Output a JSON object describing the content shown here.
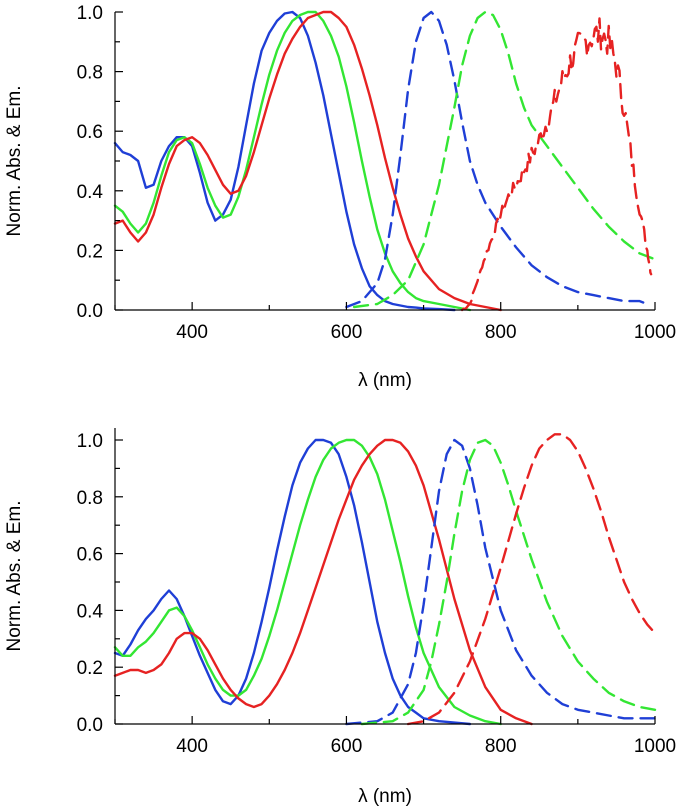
{
  "chart_data": [
    {
      "type": "line",
      "title": "",
      "xlabel": "λ (nm)",
      "ylabel": "Norm. Abs. & Em.",
      "xlim": [
        300,
        1000
      ],
      "ylim": [
        0,
        1.0
      ],
      "xticks": [
        400,
        600,
        800,
        1000
      ],
      "yticks": [
        0.0,
        0.2,
        0.4,
        0.6,
        0.8,
        1.0
      ],
      "xtick_labels": [
        "400",
        "600",
        "800",
        "1000"
      ],
      "ytick_labels": [
        "0.0",
        "0.2",
        "0.4",
        "0.6",
        "0.8",
        "1.0"
      ],
      "series": [
        {
          "name": "blue absorption",
          "color": "#1f3fd6",
          "style": "solid",
          "x": [
            300,
            310,
            320,
            330,
            340,
            350,
            360,
            370,
            380,
            390,
            400,
            410,
            420,
            430,
            440,
            450,
            460,
            470,
            480,
            490,
            500,
            510,
            520,
            530,
            540,
            550,
            560,
            570,
            580,
            590,
            600,
            610,
            620,
            630,
            640,
            650,
            660,
            670,
            680,
            690,
            700,
            720,
            740
          ],
          "y": [
            0.56,
            0.53,
            0.52,
            0.5,
            0.41,
            0.42,
            0.5,
            0.55,
            0.58,
            0.58,
            0.55,
            0.46,
            0.36,
            0.3,
            0.32,
            0.37,
            0.48,
            0.62,
            0.76,
            0.87,
            0.93,
            0.97,
            0.995,
            1.0,
            0.98,
            0.92,
            0.83,
            0.72,
            0.59,
            0.46,
            0.33,
            0.22,
            0.14,
            0.08,
            0.05,
            0.03,
            0.02,
            0.015,
            0.01,
            0.008,
            0.005,
            0.003,
            0.0
          ]
        },
        {
          "name": "green absorption",
          "color": "#33e633",
          "style": "solid",
          "x": [
            300,
            310,
            320,
            330,
            340,
            350,
            360,
            370,
            380,
            390,
            400,
            410,
            420,
            430,
            440,
            450,
            460,
            470,
            480,
            490,
            500,
            510,
            520,
            530,
            540,
            550,
            560,
            570,
            580,
            590,
            600,
            610,
            620,
            630,
            640,
            650,
            660,
            670,
            680,
            690,
            700,
            720,
            740,
            760
          ],
          "y": [
            0.35,
            0.33,
            0.29,
            0.26,
            0.29,
            0.36,
            0.45,
            0.53,
            0.57,
            0.58,
            0.56,
            0.49,
            0.41,
            0.35,
            0.31,
            0.32,
            0.38,
            0.47,
            0.58,
            0.69,
            0.79,
            0.87,
            0.93,
            0.97,
            0.99,
            1.0,
            1.0,
            0.97,
            0.92,
            0.85,
            0.75,
            0.63,
            0.5,
            0.38,
            0.27,
            0.19,
            0.13,
            0.09,
            0.06,
            0.04,
            0.03,
            0.02,
            0.01,
            0.0
          ]
        },
        {
          "name": "red absorption",
          "color": "#e62222",
          "style": "solid",
          "x": [
            300,
            310,
            320,
            330,
            340,
            350,
            360,
            370,
            380,
            390,
            400,
            410,
            420,
            430,
            440,
            450,
            460,
            470,
            480,
            490,
            500,
            510,
            520,
            530,
            540,
            550,
            560,
            570,
            580,
            590,
            600,
            610,
            620,
            630,
            640,
            650,
            660,
            670,
            680,
            690,
            700,
            720,
            740,
            760,
            780,
            800
          ],
          "y": [
            0.29,
            0.3,
            0.26,
            0.23,
            0.26,
            0.32,
            0.41,
            0.49,
            0.55,
            0.57,
            0.58,
            0.56,
            0.52,
            0.47,
            0.42,
            0.39,
            0.4,
            0.45,
            0.53,
            0.62,
            0.71,
            0.79,
            0.86,
            0.91,
            0.95,
            0.98,
            0.99,
            1.0,
            1.0,
            0.98,
            0.95,
            0.89,
            0.81,
            0.72,
            0.62,
            0.51,
            0.41,
            0.32,
            0.24,
            0.18,
            0.13,
            0.07,
            0.04,
            0.02,
            0.01,
            0.0
          ]
        },
        {
          "name": "blue emission",
          "color": "#1f3fd6",
          "style": "dashed",
          "x": [
            600,
            620,
            640,
            650,
            660,
            670,
            680,
            690,
            700,
            710,
            720,
            730,
            740,
            750,
            760,
            770,
            780,
            800,
            820,
            840,
            860,
            880,
            900,
            920,
            940,
            960,
            980,
            990
          ],
          "y": [
            0.01,
            0.03,
            0.09,
            0.17,
            0.32,
            0.52,
            0.74,
            0.9,
            0.98,
            1.0,
            0.97,
            0.89,
            0.77,
            0.63,
            0.5,
            0.42,
            0.36,
            0.28,
            0.21,
            0.15,
            0.11,
            0.08,
            0.06,
            0.05,
            0.04,
            0.03,
            0.03,
            0.02
          ]
        },
        {
          "name": "green emission",
          "color": "#33e633",
          "style": "dashed",
          "x": [
            610,
            640,
            660,
            680,
            700,
            720,
            740,
            750,
            760,
            770,
            780,
            790,
            800,
            810,
            820,
            830,
            840,
            860,
            880,
            900,
            920,
            940,
            960,
            980,
            1000
          ],
          "y": [
            0.01,
            0.02,
            0.05,
            0.1,
            0.22,
            0.42,
            0.68,
            0.82,
            0.92,
            0.98,
            1.0,
            0.99,
            0.94,
            0.86,
            0.76,
            0.68,
            0.62,
            0.55,
            0.48,
            0.41,
            0.34,
            0.28,
            0.23,
            0.19,
            0.17
          ]
        },
        {
          "name": "red emission",
          "color": "#e62222",
          "style": "noisy-dashed",
          "x": [
            750,
            760,
            770,
            780,
            790,
            800,
            810,
            820,
            830,
            840,
            850,
            860,
            870,
            880,
            890,
            900,
            910,
            920,
            930,
            940,
            950,
            960,
            970,
            980,
            990,
            995
          ],
          "y": [
            0.0,
            0.02,
            0.1,
            0.18,
            0.25,
            0.32,
            0.38,
            0.42,
            0.47,
            0.52,
            0.57,
            0.63,
            0.7,
            0.77,
            0.83,
            0.88,
            0.9,
            0.92,
            0.93,
            0.9,
            0.82,
            0.68,
            0.5,
            0.34,
            0.2,
            0.12
          ]
        }
      ]
    },
    {
      "type": "line",
      "title": "",
      "xlabel": "λ (nm)",
      "ylabel": "Norm. Abs. & Em.",
      "xlim": [
        300,
        1000
      ],
      "ylim": [
        0,
        1.0
      ],
      "xticks": [
        400,
        600,
        800,
        1000
      ],
      "yticks": [
        0.0,
        0.2,
        0.4,
        0.6,
        0.8,
        1.0
      ],
      "xtick_labels": [
        "400",
        "600",
        "800",
        "1000"
      ],
      "ytick_labels": [
        "0.0",
        "0.2",
        "0.4",
        "0.6",
        "0.8",
        "1.0"
      ],
      "series": [
        {
          "name": "blue absorption",
          "color": "#1f3fd6",
          "style": "solid",
          "x": [
            300,
            310,
            320,
            330,
            340,
            350,
            360,
            370,
            380,
            390,
            400,
            410,
            420,
            430,
            440,
            450,
            460,
            470,
            480,
            490,
            500,
            510,
            520,
            530,
            540,
            550,
            560,
            570,
            580,
            590,
            600,
            610,
            620,
            630,
            640,
            650,
            660,
            670,
            680,
            690,
            700,
            720,
            740,
            760
          ],
          "y": [
            0.25,
            0.24,
            0.28,
            0.33,
            0.37,
            0.4,
            0.44,
            0.47,
            0.44,
            0.38,
            0.31,
            0.24,
            0.18,
            0.12,
            0.08,
            0.07,
            0.1,
            0.16,
            0.25,
            0.36,
            0.48,
            0.61,
            0.73,
            0.84,
            0.92,
            0.97,
            1.0,
            1.0,
            0.99,
            0.95,
            0.87,
            0.77,
            0.64,
            0.5,
            0.36,
            0.25,
            0.16,
            0.1,
            0.06,
            0.04,
            0.02,
            0.01,
            0.005,
            0.0
          ]
        },
        {
          "name": "green absorption",
          "color": "#33e633",
          "style": "solid",
          "x": [
            300,
            310,
            320,
            330,
            340,
            350,
            360,
            370,
            380,
            390,
            400,
            410,
            420,
            430,
            440,
            450,
            460,
            470,
            480,
            490,
            500,
            510,
            520,
            530,
            540,
            550,
            560,
            570,
            580,
            590,
            600,
            610,
            620,
            630,
            640,
            650,
            660,
            670,
            680,
            690,
            700,
            720,
            740,
            760,
            780,
            800
          ],
          "y": [
            0.27,
            0.24,
            0.24,
            0.27,
            0.29,
            0.32,
            0.36,
            0.4,
            0.41,
            0.38,
            0.33,
            0.27,
            0.21,
            0.16,
            0.12,
            0.1,
            0.1,
            0.12,
            0.17,
            0.23,
            0.31,
            0.4,
            0.5,
            0.6,
            0.7,
            0.79,
            0.87,
            0.93,
            0.97,
            0.99,
            1.0,
            1.0,
            0.98,
            0.94,
            0.88,
            0.79,
            0.68,
            0.57,
            0.45,
            0.34,
            0.25,
            0.13,
            0.06,
            0.03,
            0.01,
            0.0
          ]
        },
        {
          "name": "red absorption",
          "color": "#e62222",
          "style": "solid",
          "x": [
            300,
            310,
            320,
            330,
            340,
            350,
            360,
            370,
            380,
            390,
            400,
            410,
            420,
            430,
            440,
            450,
            460,
            470,
            480,
            490,
            500,
            510,
            520,
            530,
            540,
            550,
            560,
            570,
            580,
            590,
            600,
            610,
            620,
            630,
            640,
            650,
            660,
            670,
            680,
            690,
            700,
            720,
            740,
            760,
            780,
            800,
            820,
            840
          ],
          "y": [
            0.17,
            0.18,
            0.19,
            0.19,
            0.18,
            0.19,
            0.21,
            0.25,
            0.3,
            0.32,
            0.32,
            0.3,
            0.26,
            0.21,
            0.16,
            0.12,
            0.09,
            0.07,
            0.06,
            0.07,
            0.1,
            0.14,
            0.19,
            0.25,
            0.32,
            0.4,
            0.48,
            0.56,
            0.64,
            0.72,
            0.79,
            0.86,
            0.91,
            0.95,
            0.98,
            1.0,
            1.0,
            0.99,
            0.96,
            0.91,
            0.84,
            0.65,
            0.44,
            0.26,
            0.13,
            0.05,
            0.02,
            0.0
          ]
        },
        {
          "name": "blue emission",
          "color": "#1f3fd6",
          "style": "dashed",
          "x": [
            600,
            640,
            660,
            680,
            690,
            700,
            710,
            720,
            730,
            740,
            750,
            760,
            770,
            780,
            800,
            820,
            840,
            860,
            880,
            900,
            920,
            940,
            960,
            980,
            1000
          ],
          "y": [
            0.0,
            0.01,
            0.04,
            0.14,
            0.25,
            0.42,
            0.62,
            0.82,
            0.95,
            1.0,
            0.98,
            0.9,
            0.77,
            0.62,
            0.4,
            0.26,
            0.17,
            0.11,
            0.07,
            0.05,
            0.04,
            0.03,
            0.02,
            0.02,
            0.02
          ]
        },
        {
          "name": "green emission",
          "color": "#33e633",
          "style": "dashed",
          "x": [
            620,
            660,
            680,
            700,
            710,
            720,
            730,
            740,
            750,
            760,
            770,
            780,
            790,
            800,
            810,
            820,
            840,
            860,
            880,
            900,
            920,
            940,
            960,
            980,
            1000
          ],
          "y": [
            0.0,
            0.01,
            0.04,
            0.12,
            0.22,
            0.35,
            0.5,
            0.67,
            0.82,
            0.93,
            0.99,
            1.0,
            0.98,
            0.92,
            0.84,
            0.75,
            0.58,
            0.43,
            0.31,
            0.22,
            0.16,
            0.11,
            0.08,
            0.06,
            0.05
          ]
        },
        {
          "name": "red emission",
          "color": "#e62222",
          "style": "dashed",
          "x": [
            680,
            700,
            720,
            740,
            760,
            780,
            800,
            820,
            830,
            840,
            850,
            860,
            870,
            880,
            890,
            900,
            910,
            920,
            930,
            940,
            950,
            960,
            970,
            980,
            990,
            1000
          ],
          "y": [
            0.0,
            0.01,
            0.04,
            0.11,
            0.22,
            0.37,
            0.55,
            0.74,
            0.83,
            0.91,
            0.97,
            1.0,
            1.02,
            1.02,
            1.0,
            0.96,
            0.9,
            0.83,
            0.75,
            0.66,
            0.58,
            0.5,
            0.44,
            0.39,
            0.35,
            0.32
          ]
        }
      ]
    }
  ]
}
